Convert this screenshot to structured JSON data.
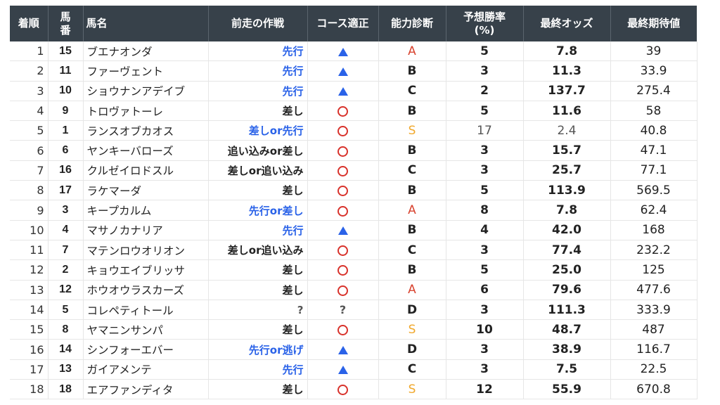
{
  "colors": {
    "header_bg": "#37414a",
    "strategy_blue": "#2a62e8",
    "course_circle": "#d8322b",
    "course_triangle": "#2a62e8",
    "ability_A": "#d8432f",
    "ability_S": "#f0a82c"
  },
  "headers": [
    "着順",
    "馬番",
    "馬名",
    "前走の作戦",
    "コース適正",
    "能力診断",
    "予想勝率(%)",
    "最終オッズ",
    "最終期待値"
  ],
  "header_lines": {
    "horse_no": [
      "馬",
      "番"
    ],
    "win_rate": [
      "予想勝率",
      "(%)"
    ]
  },
  "rows": [
    {
      "rank": "1",
      "no": "15",
      "name": "ブエナオンダ",
      "strategy": "先行",
      "course": "triangle",
      "ability": "A",
      "rate": "5",
      "odds": "7.8",
      "ev": "39"
    },
    {
      "rank": "2",
      "no": "11",
      "name": "ファーヴェント",
      "strategy": "先行",
      "course": "triangle",
      "ability": "B",
      "rate": "3",
      "odds": "11.3",
      "ev": "33.9"
    },
    {
      "rank": "3",
      "no": "10",
      "name": "ショウナンアデイブ",
      "strategy": "先行",
      "course": "triangle",
      "ability": "C",
      "rate": "2",
      "odds": "137.7",
      "ev": "275.4"
    },
    {
      "rank": "4",
      "no": "9",
      "name": "トロヴァトーレ",
      "strategy": "差し",
      "course": "circle",
      "ability": "B",
      "rate": "5",
      "odds": "11.6",
      "ev": "58"
    },
    {
      "rank": "5",
      "no": "1",
      "name": "ランスオブカオス",
      "strategy": "差しor先行",
      "course": "circle",
      "ability": "S",
      "rate": "17",
      "odds": "2.4",
      "ev": "40.8",
      "muted": true
    },
    {
      "rank": "6",
      "no": "6",
      "name": "ヤンキーバローズ",
      "strategy": "追い込みor差し",
      "course": "circle",
      "ability": "B",
      "rate": "3",
      "odds": "15.7",
      "ev": "47.1"
    },
    {
      "rank": "7",
      "no": "16",
      "name": "クルゼイロドスル",
      "strategy": "差しor追い込み",
      "course": "circle",
      "ability": "C",
      "rate": "3",
      "odds": "25.7",
      "ev": "77.1"
    },
    {
      "rank": "8",
      "no": "17",
      "name": "ラケマーダ",
      "strategy": "差し",
      "course": "circle",
      "ability": "B",
      "rate": "5",
      "odds": "113.9",
      "ev": "569.5"
    },
    {
      "rank": "9",
      "no": "3",
      "name": "キープカルム",
      "strategy": "先行or差し",
      "course": "circle",
      "ability": "A",
      "rate": "8",
      "odds": "7.8",
      "ev": "62.4"
    },
    {
      "rank": "10",
      "no": "4",
      "name": "マサノカナリア",
      "strategy": "先行",
      "course": "triangle",
      "ability": "B",
      "rate": "4",
      "odds": "42.0",
      "ev": "168"
    },
    {
      "rank": "11",
      "no": "7",
      "name": "マテンロウオリオン",
      "strategy": "差しor追い込み",
      "course": "circle",
      "ability": "C",
      "rate": "3",
      "odds": "77.4",
      "ev": "232.2"
    },
    {
      "rank": "12",
      "no": "2",
      "name": "キョウエイブリッサ",
      "strategy": "差し",
      "course": "circle",
      "ability": "B",
      "rate": "5",
      "odds": "25.0",
      "ev": "125"
    },
    {
      "rank": "13",
      "no": "12",
      "name": "ホウオウラスカーズ",
      "strategy": "差し",
      "course": "circle",
      "ability": "A",
      "rate": "6",
      "odds": "79.6",
      "ev": "477.6"
    },
    {
      "rank": "14",
      "no": "5",
      "name": "コレペティトール",
      "strategy": "?",
      "course": "?",
      "ability": "D",
      "rate": "3",
      "odds": "111.3",
      "ev": "333.9"
    },
    {
      "rank": "15",
      "no": "8",
      "name": "ヤマニンサンパ",
      "strategy": "差し",
      "course": "circle",
      "ability": "S",
      "rate": "10",
      "odds": "48.7",
      "ev": "487"
    },
    {
      "rank": "16",
      "no": "14",
      "name": "シンフォーエバー",
      "strategy": "先行or逃げ",
      "course": "triangle",
      "ability": "D",
      "rate": "3",
      "odds": "38.9",
      "ev": "116.7"
    },
    {
      "rank": "17",
      "no": "13",
      "name": "ガイアメンテ",
      "strategy": "先行",
      "course": "triangle",
      "ability": "C",
      "rate": "3",
      "odds": "7.5",
      "ev": "22.5"
    },
    {
      "rank": "18",
      "no": "18",
      "name": "エアファンディタ",
      "strategy": "差し",
      "course": "circle",
      "ability": "S",
      "rate": "12",
      "odds": "55.9",
      "ev": "670.8"
    }
  ]
}
